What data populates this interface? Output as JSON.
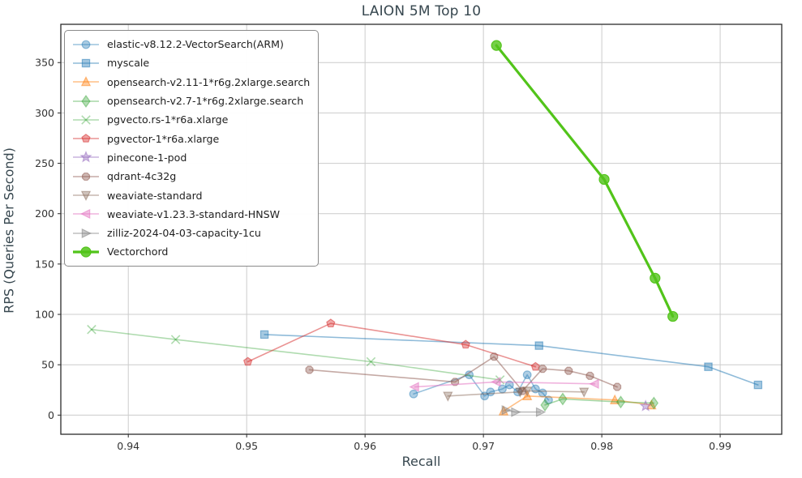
{
  "chart_data": {
    "type": "line",
    "title": "LAION 5M Top 10",
    "xlabel": "Recall",
    "ylabel": "RPS (Queries Per Second)",
    "xlim": [
      0.9343,
      0.9952
    ],
    "ylim": [
      -19,
      388
    ],
    "xticks": [
      0.94,
      0.95,
      0.96,
      0.97,
      0.98,
      0.99
    ],
    "yticks": [
      0,
      50,
      100,
      150,
      200,
      250,
      300,
      350
    ],
    "grid": true,
    "legend_position": "upper-left",
    "colors": {
      "grid": "#cccccc",
      "spine": "#2b2b2b",
      "tick_label": "#333333",
      "title": "#37474f",
      "accent_vectorchord": "#52c41a"
    },
    "series": [
      {
        "name": "elastic-v8.12.2-VectorSearch(ARM)",
        "marker": "circle",
        "color": "#1f77b4",
        "alpha": 0.45,
        "line_width": 1.6,
        "marker_size": 4.8,
        "points": [
          [
            0.9641,
            21
          ],
          [
            0.9688,
            40
          ],
          [
            0.9701,
            19
          ],
          [
            0.9706,
            23
          ],
          [
            0.9716,
            26
          ],
          [
            0.9722,
            30
          ],
          [
            0.9729,
            23
          ],
          [
            0.9737,
            40
          ],
          [
            0.9744,
            26
          ],
          [
            0.975,
            22
          ],
          [
            0.9755,
            15
          ]
        ]
      },
      {
        "name": "myscale",
        "marker": "square",
        "color": "#1f77b4",
        "alpha": 0.5,
        "line_width": 1.6,
        "marker_size": 4.6,
        "points": [
          [
            0.9515,
            80
          ],
          [
            0.9747,
            69
          ],
          [
            0.989,
            48
          ],
          [
            0.9932,
            30
          ]
        ]
      },
      {
        "name": "opensearch-v2.11-1*r6g.2xlarge.search",
        "marker": "triangle-up",
        "color": "#ff7f0e",
        "alpha": 0.5,
        "line_width": 1.6,
        "marker_size": 5.2,
        "points": [
          [
            0.9717,
            4
          ],
          [
            0.9737,
            19
          ],
          [
            0.9811,
            15
          ],
          [
            0.9842,
            10
          ]
        ]
      },
      {
        "name": "opensearch-v2.7-1*r6g.2xlarge.search",
        "marker": "diamond",
        "color": "#2ca02c",
        "alpha": 0.42,
        "line_width": 1.6,
        "marker_size": 5.8,
        "points": [
          [
            0.9752,
            10
          ],
          [
            0.9767,
            16
          ],
          [
            0.9816,
            13
          ],
          [
            0.9844,
            12
          ]
        ]
      },
      {
        "name": "pgvecto.rs-1*r6a.xlarge",
        "marker": "x",
        "color": "#2ca02c",
        "alpha": 0.38,
        "line_width": 1.6,
        "marker_size": 5.2,
        "points": [
          [
            0.9369,
            85
          ],
          [
            0.944,
            75
          ],
          [
            0.9605,
            53
          ],
          [
            0.9714,
            35
          ]
        ]
      },
      {
        "name": "pgvector-1*r6a.xlarge",
        "marker": "pentagon",
        "color": "#d62728",
        "alpha": 0.5,
        "line_width": 1.6,
        "marker_size": 5.2,
        "points": [
          [
            0.9501,
            53
          ],
          [
            0.9571,
            91
          ],
          [
            0.9685,
            70
          ],
          [
            0.9744,
            48
          ]
        ]
      },
      {
        "name": "pinecone-1-pod",
        "marker": "star",
        "color": "#9467bd",
        "alpha": 0.5,
        "line_width": 1.6,
        "marker_size": 5.6,
        "points": [
          [
            0.9837,
            9
          ]
        ]
      },
      {
        "name": "qdrant-4c32g",
        "marker": "octagon",
        "color": "#8c564b",
        "alpha": 0.5,
        "line_width": 1.6,
        "marker_size": 4.8,
        "points": [
          [
            0.9553,
            45
          ],
          [
            0.9676,
            33
          ],
          [
            0.9709,
            58
          ],
          [
            0.9733,
            24
          ],
          [
            0.975,
            46
          ],
          [
            0.9772,
            44
          ],
          [
            0.979,
            39
          ],
          [
            0.9813,
            28
          ]
        ]
      },
      {
        "name": "weaviate-standard",
        "marker": "triangle-down",
        "color": "#80604d",
        "alpha": 0.45,
        "line_width": 1.6,
        "marker_size": 5.2,
        "points": [
          [
            0.967,
            19
          ],
          [
            0.9731,
            23
          ],
          [
            0.9737,
            24
          ],
          [
            0.9785,
            23
          ]
        ]
      },
      {
        "name": "weaviate-v1.23.3-standard-HNSW",
        "marker": "triangle-left",
        "color": "#e377c2",
        "alpha": 0.55,
        "line_width": 1.6,
        "marker_size": 5.2,
        "points": [
          [
            0.9642,
            28
          ],
          [
            0.9711,
            33
          ],
          [
            0.9794,
            31
          ]
        ]
      },
      {
        "name": "zilliz-2024-04-03-capacity-1cu",
        "marker": "triangle-right",
        "color": "#7f7f7f",
        "alpha": 0.5,
        "line_width": 1.6,
        "marker_size": 5.2,
        "points": [
          [
            0.9719,
            5
          ],
          [
            0.9727,
            3
          ],
          [
            0.9748,
            3
          ]
        ]
      },
      {
        "name": "Vectorchord",
        "marker": "circle",
        "color": "#52c41a",
        "alpha": 1,
        "line_width": 3.2,
        "marker_size": 6,
        "points": [
          [
            0.9711,
            367
          ],
          [
            0.9802,
            234
          ],
          [
            0.9845,
            136
          ],
          [
            0.986,
            98
          ]
        ]
      }
    ]
  }
}
